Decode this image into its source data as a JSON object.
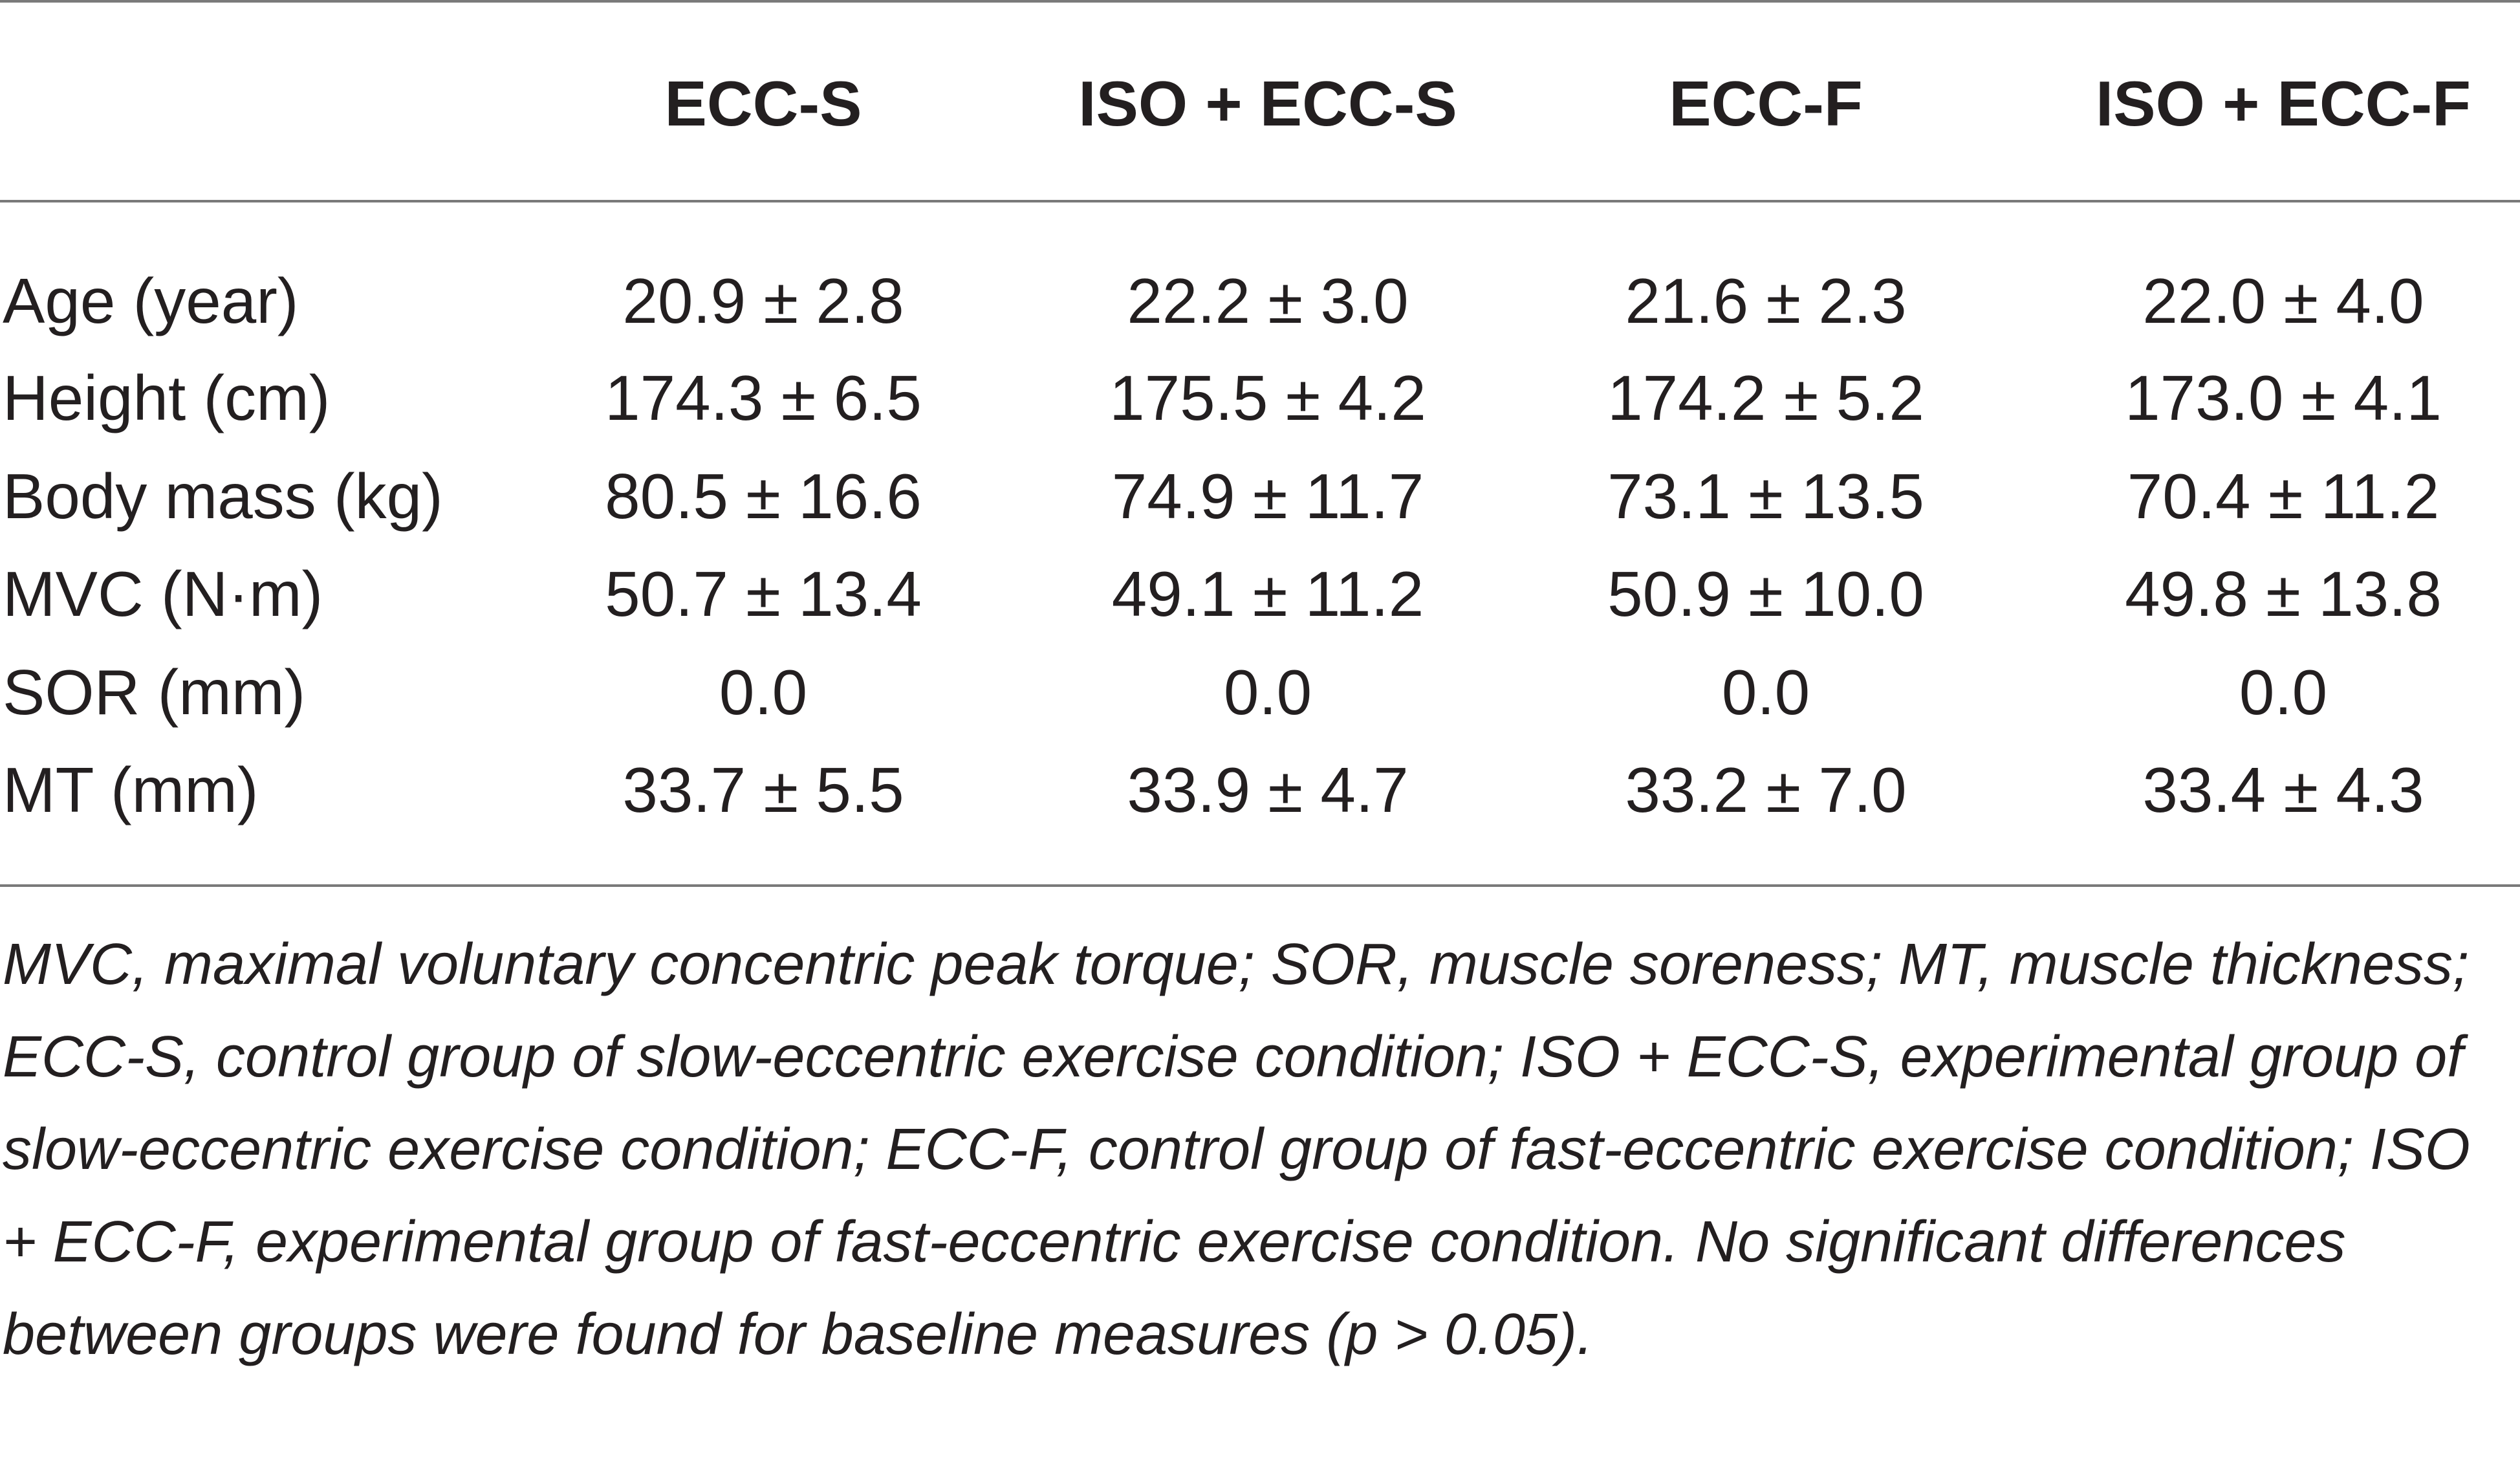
{
  "table": {
    "columns": [
      "",
      "ECC-S",
      "ISO + ECC-S",
      "ECC-F",
      "ISO + ECC-F"
    ],
    "rows": [
      {
        "label": "Age (year)",
        "values": [
          "20.9 ± 2.8",
          "22.2 ± 3.0",
          "21.6 ± 2.3",
          "22.0 ± 4.0"
        ]
      },
      {
        "label": "Height (cm)",
        "values": [
          "174.3 ± 6.5",
          "175.5 ± 4.2",
          "174.2 ± 5.2",
          "173.0 ± 4.1"
        ]
      },
      {
        "label": "Body mass (kg)",
        "values": [
          "80.5 ± 16.6",
          "74.9 ± 11.7",
          "73.1 ± 13.5",
          "70.4 ± 11.2"
        ]
      },
      {
        "label": "MVC (N·m)",
        "values": [
          "50.7 ± 13.4",
          "49.1 ± 11.2",
          "50.9 ± 10.0",
          "49.8 ± 13.8"
        ]
      },
      {
        "label": "SOR (mm)",
        "values": [
          "0.0",
          "0.0",
          "0.0",
          "0.0"
        ]
      },
      {
        "label": "MT (mm)",
        "values": [
          "33.7 ± 5.5",
          "33.9 ± 4.7",
          "33.2 ± 7.0",
          "33.4 ± 4.3"
        ]
      }
    ],
    "footnote": "MVC, maximal voluntary concentric peak torque; SOR, muscle soreness; MT, muscle thickness; ECC-S, control group of slow-eccentric exercise condition; ISO + ECC-S, experimental group of slow-eccentric exercise condition; ECC-F, control group of fast-eccentric exercise condition; ISO + ECC-F, experimental group of fast-eccentric exercise condition. No significant differences between groups were found for baseline measures (p > 0.05)."
  }
}
